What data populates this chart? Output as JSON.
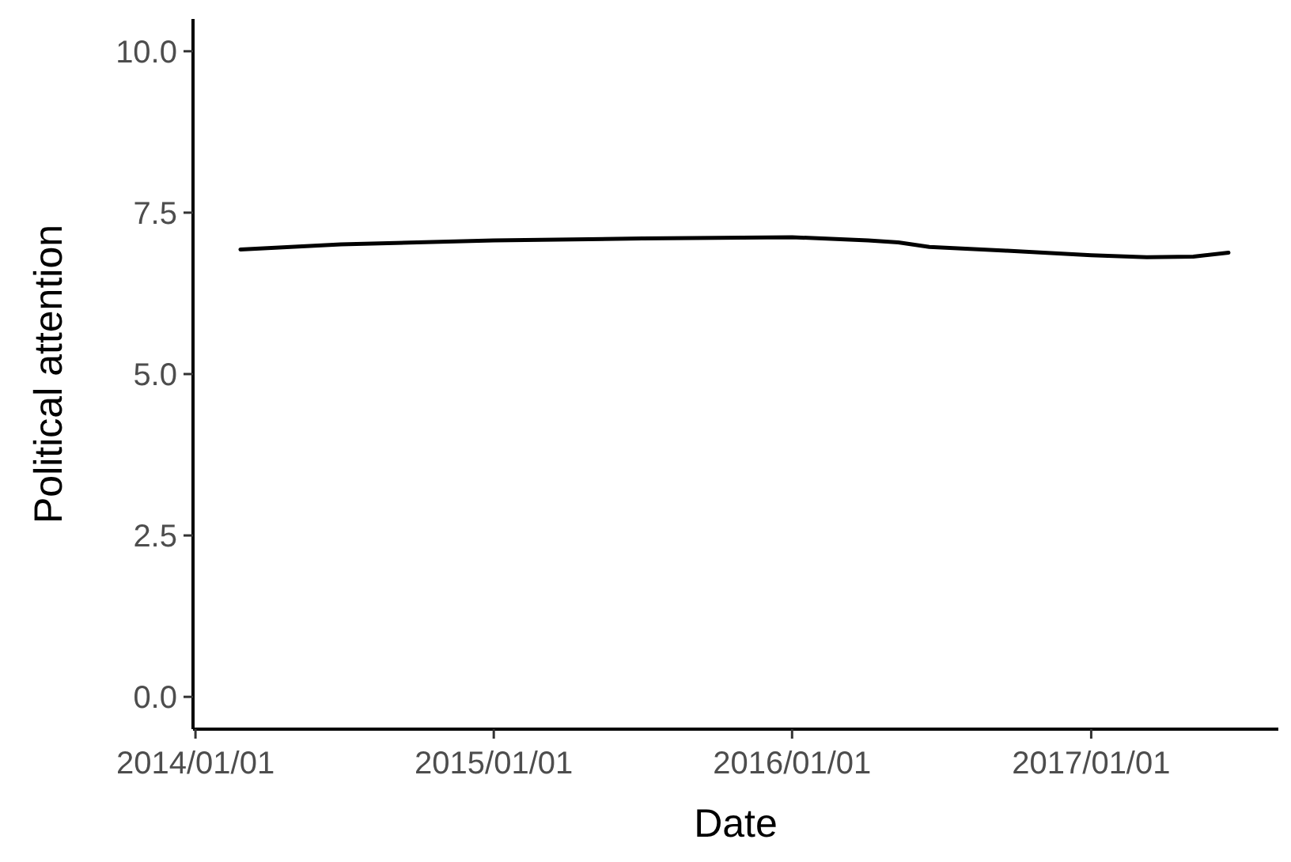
{
  "chart_data": {
    "type": "line",
    "xlabel": "Date",
    "ylabel": "Political attention",
    "x": [
      "2014-02-25",
      "2014-06-28",
      "2015-01-01",
      "2015-07-02",
      "2016-01-01",
      "2016-04-03",
      "2016-05-10",
      "2016-06-17",
      "2016-09-20",
      "2017-01-01",
      "2017-03-10",
      "2017-05-06",
      "2017-06-18"
    ],
    "series": [
      {
        "color": "#000000",
        "values": [
          6.93,
          7.01,
          7.07,
          7.1,
          7.12,
          7.07,
          7.04,
          6.97,
          6.91,
          6.84,
          6.81,
          6.82,
          6.88
        ]
      }
    ],
    "xlim": [
      "2013-12-29",
      "2017-08-18"
    ],
    "xticks": [
      {
        "value": "2014-01-01",
        "label": "2014/01/01"
      },
      {
        "value": "2015-01-01",
        "label": "2015/01/01"
      },
      {
        "value": "2016-01-01",
        "label": "2016/01/01"
      },
      {
        "value": "2017-01-01",
        "label": "2017/01/01"
      }
    ],
    "ylim": [
      -0.5,
      10.5
    ],
    "yticks": [
      {
        "value": 0,
        "label": "0.0"
      },
      {
        "value": 2.5,
        "label": "2.5"
      },
      {
        "value": 5,
        "label": "5.0"
      },
      {
        "value": 7.5,
        "label": "7.5"
      },
      {
        "value": 10,
        "label": "10.0"
      }
    ],
    "grid": false,
    "marker": "none",
    "line_style": "solid"
  }
}
